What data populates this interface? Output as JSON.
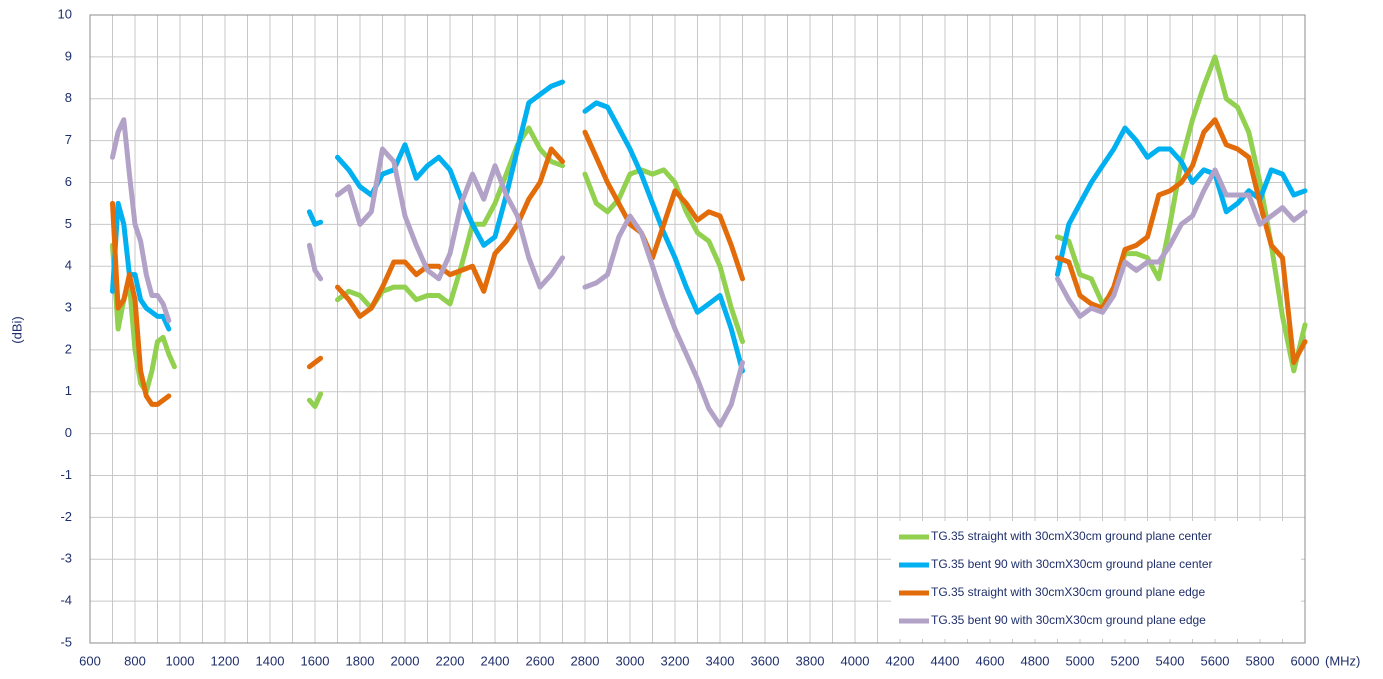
{
  "chart_data": {
    "type": "line",
    "ylabel": "(dBi)",
    "xlabel": "(MHz)",
    "xlim": [
      600,
      6000
    ],
    "ylim": [
      -5,
      10
    ],
    "xticks": [
      600,
      800,
      1000,
      1200,
      1400,
      1600,
      1800,
      2000,
      2200,
      2400,
      2600,
      2800,
      3000,
      3200,
      3400,
      3600,
      3800,
      4000,
      4200,
      4400,
      4600,
      4800,
      5000,
      5200,
      5400,
      5600,
      5800,
      6000
    ],
    "yticks": [
      -5,
      -4,
      -3,
      -2,
      -1,
      0,
      1,
      2,
      3,
      4,
      5,
      6,
      7,
      8,
      9,
      10
    ],
    "xgrid_step": 100,
    "grid": true,
    "legend": "lower right",
    "x": [
      700,
      725,
      750,
      775,
      800,
      825,
      850,
      875,
      900,
      925,
      950,
      975,
      1200,
      1575,
      1600,
      1625,
      1650,
      1700,
      1750,
      1800,
      1850,
      1900,
      1950,
      2000,
      2050,
      2100,
      2150,
      2200,
      2250,
      2300,
      2350,
      2400,
      2450,
      2500,
      2550,
      2600,
      2650,
      2700,
      2750,
      2800,
      2850,
      2900,
      2950,
      3000,
      3050,
      3100,
      3150,
      3200,
      3250,
      3300,
      3350,
      3400,
      3450,
      3500,
      4200,
      4900,
      4950,
      5000,
      5050,
      5100,
      5150,
      5200,
      5250,
      5300,
      5350,
      5400,
      5450,
      5500,
      5550,
      5600,
      5650,
      5700,
      5750,
      5800,
      5850,
      5900,
      5950,
      6000
    ],
    "series": [
      {
        "name": "TG.35 straight with 30cmX30cm ground plane center",
        "color": "#92d050",
        "values": [
          4.5,
          2.5,
          3.2,
          3.6,
          2.0,
          1.2,
          1.0,
          1.5,
          2.2,
          2.3,
          1.9,
          1.6,
          null,
          0.8,
          0.65,
          0.95,
          null,
          3.2,
          3.4,
          3.3,
          3.0,
          3.4,
          3.5,
          3.5,
          3.2,
          3.3,
          3.3,
          3.1,
          4.0,
          5.0,
          5.0,
          5.5,
          6.2,
          6.9,
          7.3,
          6.8,
          6.5,
          6.4,
          null,
          6.2,
          5.5,
          5.3,
          5.6,
          6.2,
          6.3,
          6.2,
          6.3,
          6.0,
          5.3,
          4.8,
          4.6,
          4.0,
          3.0,
          2.2,
          null,
          4.7,
          4.6,
          3.8,
          3.7,
          3.1,
          3.4,
          4.3,
          4.3,
          4.2,
          3.7,
          5.0,
          6.5,
          7.5,
          8.3,
          9.0,
          8.0,
          7.8,
          7.2,
          6.0,
          4.5,
          2.8,
          1.5,
          2.6
        ]
      },
      {
        "name": "TG.35 bent 90 with 30cmX30cm ground plane center",
        "color": "#00b0f0",
        "values": [
          3.4,
          5.5,
          5.0,
          3.8,
          3.8,
          3.2,
          3.0,
          2.9,
          2.8,
          2.8,
          2.5,
          null,
          null,
          5.3,
          5.0,
          5.05,
          null,
          6.6,
          6.3,
          5.9,
          5.7,
          6.2,
          6.3,
          6.9,
          6.1,
          6.4,
          6.6,
          6.3,
          5.6,
          5.0,
          4.5,
          4.7,
          5.7,
          6.8,
          7.9,
          8.1,
          8.3,
          8.4,
          null,
          7.7,
          7.9,
          7.8,
          7.3,
          6.8,
          6.2,
          5.5,
          4.8,
          4.2,
          3.5,
          2.9,
          3.1,
          3.3,
          2.5,
          1.5,
          null,
          3.8,
          5.0,
          5.5,
          6.0,
          6.4,
          6.8,
          7.3,
          7.0,
          6.6,
          6.8,
          6.8,
          6.5,
          6.0,
          6.3,
          6.2,
          5.3,
          5.5,
          5.8,
          5.6,
          6.3,
          6.2,
          5.7,
          5.8
        ]
      },
      {
        "name": "TG.35 straight with 30cmX30cm ground plane edge",
        "color": "#e36c0a",
        "values": [
          5.5,
          3.0,
          3.2,
          3.8,
          3.2,
          1.5,
          0.9,
          0.7,
          0.7,
          0.8,
          0.9,
          null,
          null,
          1.6,
          1.7,
          1.8,
          null,
          3.5,
          3.2,
          2.8,
          3.0,
          3.5,
          4.1,
          4.1,
          3.8,
          4.0,
          4.0,
          3.8,
          3.9,
          4.0,
          3.4,
          4.3,
          4.6,
          5.0,
          5.6,
          6.0,
          6.8,
          6.5,
          null,
          7.2,
          6.6,
          6.0,
          5.5,
          5.0,
          4.8,
          4.2,
          5.0,
          5.8,
          5.5,
          5.1,
          5.3,
          5.2,
          4.5,
          3.7,
          null,
          4.2,
          4.1,
          3.3,
          3.1,
          3.0,
          3.5,
          4.4,
          4.5,
          4.7,
          5.7,
          5.8,
          6.0,
          6.4,
          7.2,
          7.5,
          6.9,
          6.8,
          6.6,
          5.5,
          4.5,
          4.2,
          1.7,
          2.2
        ]
      },
      {
        "name": "TG.35 bent 90 with 30cmX30cm ground plane edge",
        "color": "#b3a2c7",
        "values": [
          6.6,
          7.2,
          7.5,
          6.2,
          5.0,
          4.6,
          3.8,
          3.3,
          3.3,
          3.1,
          2.7,
          null,
          null,
          4.5,
          3.9,
          3.7,
          null,
          5.7,
          5.9,
          5.0,
          5.3,
          6.8,
          6.5,
          5.2,
          4.5,
          3.9,
          3.7,
          4.3,
          5.5,
          6.2,
          5.6,
          6.4,
          5.7,
          5.2,
          4.2,
          3.5,
          3.8,
          4.2,
          null,
          3.5,
          3.6,
          3.8,
          4.7,
          5.2,
          4.8,
          4.0,
          3.2,
          2.5,
          1.9,
          1.3,
          0.6,
          0.2,
          0.7,
          1.7,
          null,
          3.7,
          3.2,
          2.8,
          3.0,
          2.9,
          3.3,
          4.1,
          3.9,
          4.1,
          4.1,
          4.5,
          5.0,
          5.2,
          5.8,
          6.3,
          5.7,
          5.7,
          5.7,
          5.0,
          5.2,
          5.4,
          5.1,
          5.3
        ]
      }
    ]
  }
}
